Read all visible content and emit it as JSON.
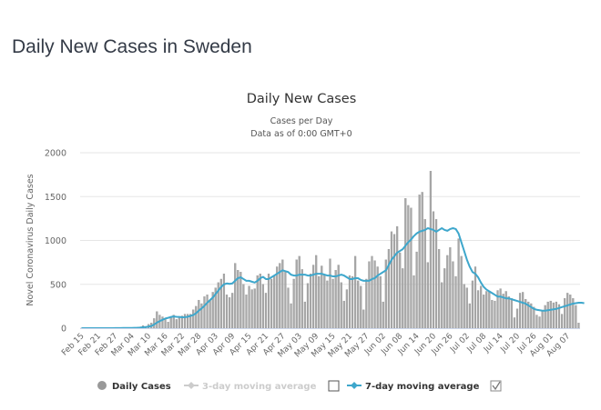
{
  "page": {
    "heading": "Daily New Cases in Sweden"
  },
  "chart_data": {
    "type": "bar",
    "title": "Daily New Cases",
    "subtitle_lines": [
      "Cases per Day",
      "Data as of 0:00 GMT+0"
    ],
    "xlabel": "",
    "ylabel": "Novel Coronavirus Daily Cases",
    "ylim": [
      0,
      2000
    ],
    "yticks": [
      0,
      500,
      1000,
      1500,
      2000
    ],
    "grid": true,
    "legend_position": "bottom",
    "x_tick_labels": [
      "Feb 15",
      "Feb 21",
      "Feb 27",
      "Mar 04",
      "Mar 10",
      "Mar 16",
      "Mar 22",
      "Mar 28",
      "Apr 03",
      "Apr 09",
      "Apr 15",
      "Apr 21",
      "Apr 27",
      "May 03",
      "May 09",
      "May 15",
      "May 21",
      "May 27",
      "Jun 02",
      "Jun 08",
      "Jun 14",
      "Jun 20",
      "Jun 26",
      "Jul 02",
      "Jul 08",
      "Jul 14",
      "Jul 20",
      "Jul 26",
      "Aug 01",
      "Aug 07"
    ],
    "x_start_date": "Feb 15",
    "series": [
      {
        "name": "Daily Cases",
        "kind": "bar",
        "color": "#a8a8a8",
        "visible": true,
        "values": [
          1,
          0,
          0,
          0,
          0,
          0,
          0,
          0,
          0,
          0,
          0,
          0,
          1,
          1,
          2,
          3,
          4,
          5,
          5,
          6,
          10,
          15,
          30,
          20,
          45,
          60,
          110,
          190,
          150,
          130,
          100,
          70,
          120,
          150,
          100,
          130,
          140,
          160,
          160,
          160,
          210,
          250,
          320,
          280,
          360,
          380,
          320,
          410,
          460,
          520,
          560,
          620,
          380,
          350,
          400,
          740,
          660,
          640,
          500,
          380,
          480,
          440,
          450,
          600,
          620,
          500,
          400,
          620,
          560,
          600,
          700,
          740,
          780,
          640,
          460,
          280,
          560,
          780,
          820,
          670,
          300,
          510,
          620,
          720,
          830,
          590,
          710,
          610,
          540,
          790,
          560,
          660,
          720,
          520,
          310,
          440,
          600,
          590,
          820,
          540,
          480,
          210,
          560,
          760,
          820,
          770,
          700,
          590,
          300,
          780,
          900,
          1100,
          1070,
          1160,
          860,
          680,
          1480,
          1400,
          1370,
          600,
          870,
          1520,
          1550,
          1240,
          750,
          1790,
          1330,
          1240,
          900,
          520,
          680,
          830,
          920,
          760,
          590,
          1020,
          820,
          500,
          460,
          280,
          540,
          700,
          430,
          480,
          380,
          420,
          420,
          320,
          310,
          430,
          450,
          390,
          420,
          360,
          340,
          120,
          220,
          400,
          410,
          330,
          300,
          280,
          240,
          150,
          130,
          190,
          260,
          300,
          310,
          290,
          300,
          270,
          160,
          340,
          400,
          380,
          340,
          260,
          60
        ],
        "note": "Approximate values read from bar heights"
      },
      {
        "name": "3-day moving average",
        "kind": "line",
        "color": "#cccccc",
        "visible": false
      },
      {
        "name": "7-day moving average",
        "kind": "line",
        "color": "#3ea7cc",
        "visible": true,
        "values": [
          0,
          0,
          0,
          0,
          0,
          0,
          0,
          0,
          0,
          0,
          0,
          0,
          1,
          1,
          1,
          2,
          2,
          3,
          3,
          4,
          5,
          7,
          10,
          13,
          18,
          25,
          42,
          63,
          80,
          95,
          110,
          118,
          128,
          133,
          130,
          128,
          124,
          126,
          130,
          140,
          150,
          170,
          200,
          225,
          255,
          290,
          320,
          350,
          390,
          430,
          470,
          500,
          510,
          505,
          510,
          540,
          570,
          580,
          560,
          540,
          540,
          530,
          520,
          540,
          570,
          585,
          560,
          560,
          580,
          600,
          620,
          640,
          660,
          650,
          640,
          610,
          600,
          600,
          610,
          610,
          610,
          600,
          600,
          610,
          620,
          620,
          620,
          610,
          600,
          600,
          590,
          590,
          600,
          610,
          600,
          580,
          560,
          560,
          570,
          570,
          550,
          540,
          540,
          540,
          560,
          570,
          600,
          620,
          640,
          660,
          720,
          780,
          820,
          860,
          880,
          900,
          940,
          980,
          1010,
          1050,
          1080,
          1100,
          1110,
          1120,
          1140,
          1130,
          1120,
          1100,
          1120,
          1140,
          1120,
          1110,
          1130,
          1140,
          1130,
          1080,
          980,
          880,
          780,
          700,
          640,
          620,
          580,
          520,
          470,
          440,
          420,
          400,
          380,
          360,
          360,
          350,
          340,
          340,
          330,
          320,
          310,
          300,
          290,
          280,
          260,
          240,
          220,
          210,
          205,
          200,
          200,
          205,
          210,
          215,
          220,
          230,
          240,
          250,
          260,
          270,
          280,
          285,
          290,
          290,
          285
        ]
      }
    ]
  },
  "legend": {
    "items": [
      {
        "label": "Daily Cases",
        "active": true
      },
      {
        "label": "3-day moving average",
        "active": false,
        "checked": false
      },
      {
        "label": "7-day moving average",
        "active": true,
        "checked": true
      }
    ]
  },
  "colors": {
    "bar": "#a8a8a8",
    "bar_stroke": "#8f8f8f",
    "line7": "#3ea7cc",
    "line3": "#cccccc",
    "grid": "#e6e6e6",
    "heading": "#333a46"
  }
}
